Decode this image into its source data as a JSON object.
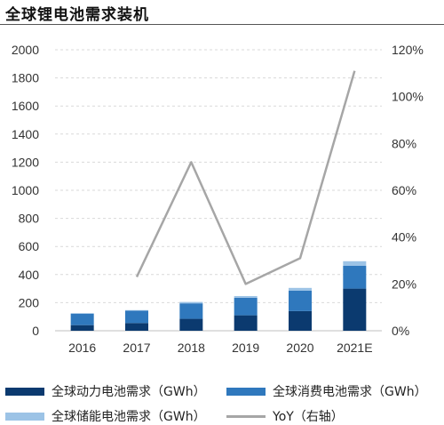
{
  "title": "全球锂电池需求装机",
  "chart_data": {
    "type": "bar",
    "stacked": true,
    "categories": [
      "2016",
      "2017",
      "2018",
      "2019",
      "2020",
      "2021E"
    ],
    "series": [
      {
        "name": "全球动力电池需求（GWh）",
        "color": "#0b3a6f",
        "values": [
          40,
          55,
          85,
          110,
          140,
          300
        ]
      },
      {
        "name": "全球消费电池需求（GWh）",
        "color": "#2f78bd",
        "values": [
          82,
          88,
          110,
          125,
          145,
          162
        ]
      },
      {
        "name": "全球储能电池需求（GWh）",
        "color": "#9cc3e6",
        "values": [
          3,
          4,
          10,
          12,
          20,
          33
        ]
      }
    ],
    "line_series": {
      "name": "YoY（右轴）",
      "color": "#a6a6a6",
      "values": [
        null,
        0.23,
        0.72,
        0.2,
        0.31,
        1.11
      ]
    },
    "y_left": {
      "min": 0,
      "max": 2000,
      "ticks": [
        "0",
        "200",
        "400",
        "600",
        "800",
        "1000",
        "1200",
        "1400",
        "1600",
        "1800",
        "2000"
      ]
    },
    "y_right": {
      "min": 0,
      "max": 1.2,
      "ticks": [
        "0%",
        "20%",
        "40%",
        "60%",
        "80%",
        "100%",
        "120%"
      ]
    },
    "grid": true,
    "legend": "bottom"
  }
}
